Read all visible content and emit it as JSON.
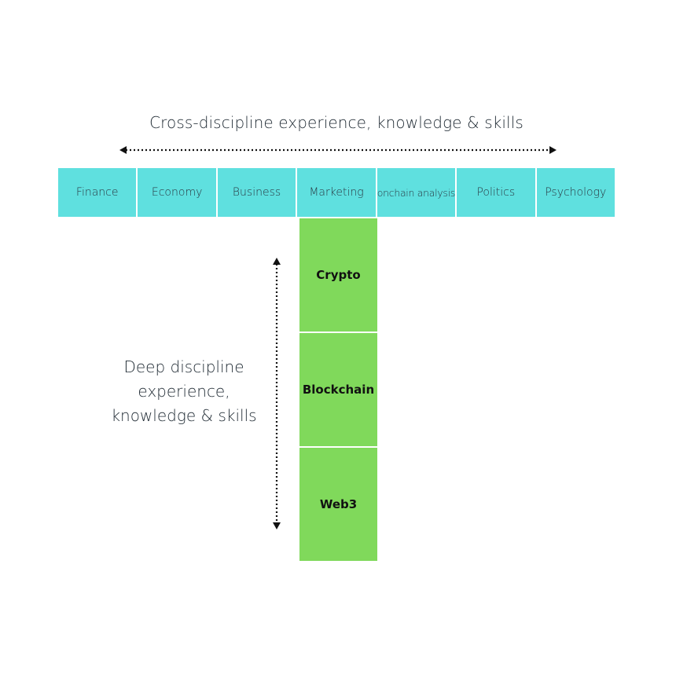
{
  "title": "Cross-discipline experience, knowledge & skills",
  "breadth_items": [
    {
      "label": "Finance"
    },
    {
      "label": "Economy"
    },
    {
      "label": "Business"
    },
    {
      "label": "Marketing"
    },
    {
      "label": "onchain analysis"
    },
    {
      "label": "Politics"
    },
    {
      "label": "Psychology"
    }
  ],
  "depth_items": [
    {
      "label": "Crypto"
    },
    {
      "label": "Blockchain"
    },
    {
      "label": "Web3"
    }
  ],
  "depth_label": {
    "line1": "Deep discipline",
    "line2": "experience,",
    "line3": "knowledge & skills"
  },
  "colors": {
    "breadth": "#5fe0df",
    "depth": "#80d95b",
    "arrow": "#111111"
  }
}
